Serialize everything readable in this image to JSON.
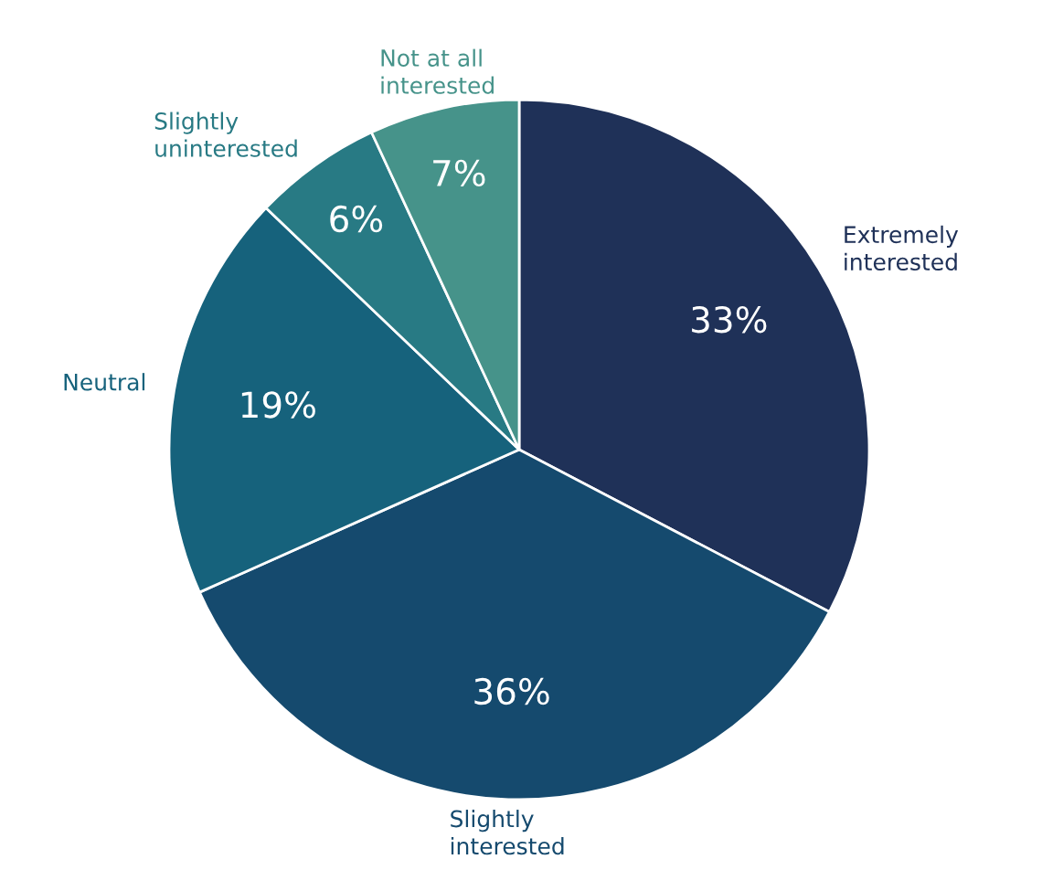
{
  "chart_data": {
    "type": "pie",
    "categories": [
      "Extremely\ninterested",
      "Slightly\ninterested",
      "Neutral",
      "Slightly\nuninterested",
      "Not at all\ninterested"
    ],
    "values": [
      33,
      36,
      19,
      6,
      7
    ],
    "colors": [
      "#1f3158",
      "#154a6e",
      "#16627c",
      "#287a84",
      "#46938a"
    ],
    "value_labels": [
      "33%",
      "36%",
      "19%",
      "6%",
      "7%"
    ]
  }
}
